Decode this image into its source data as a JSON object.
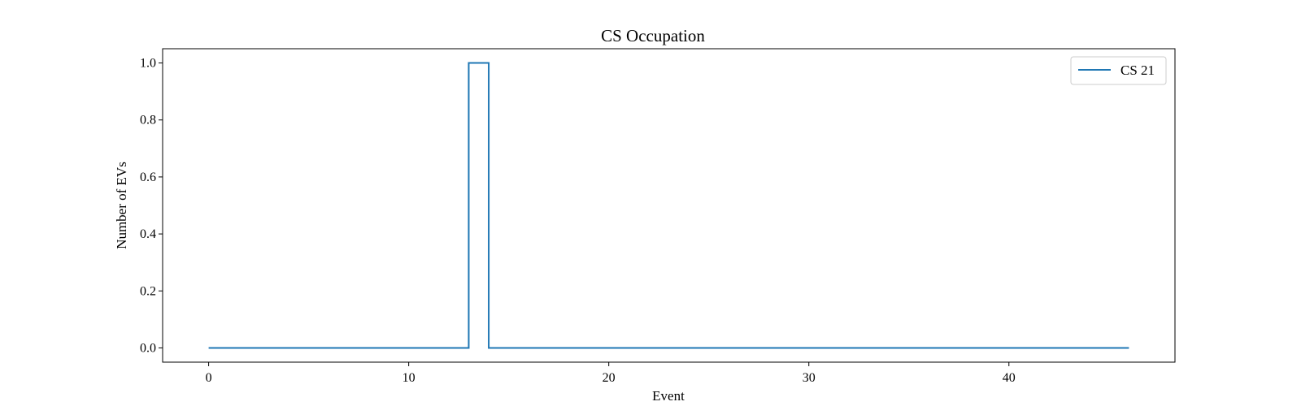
{
  "chart_data": {
    "type": "line",
    "drawstyle": "steps-post",
    "title": "CS Occupation",
    "xlabel": "Event",
    "ylabel": "Number of EVs",
    "xlim": [
      -2.3,
      48.3
    ],
    "ylim": [
      -0.05,
      1.05
    ],
    "xticks": [
      0,
      10,
      20,
      30,
      40
    ],
    "xtick_labels": [
      "0",
      "10",
      "20",
      "30",
      "40"
    ],
    "yticks": [
      0.0,
      0.2,
      0.4,
      0.6,
      0.8,
      1.0
    ],
    "ytick_labels": [
      "0.0",
      "0.2",
      "0.4",
      "0.6",
      "0.8",
      "1.0"
    ],
    "grid": false,
    "legend_position": "top-right",
    "series": [
      {
        "name": "CS 21",
        "color": "#1f77b4",
        "x": [
          0,
          13,
          14,
          46
        ],
        "y": [
          0,
          1,
          0,
          0
        ]
      }
    ]
  }
}
